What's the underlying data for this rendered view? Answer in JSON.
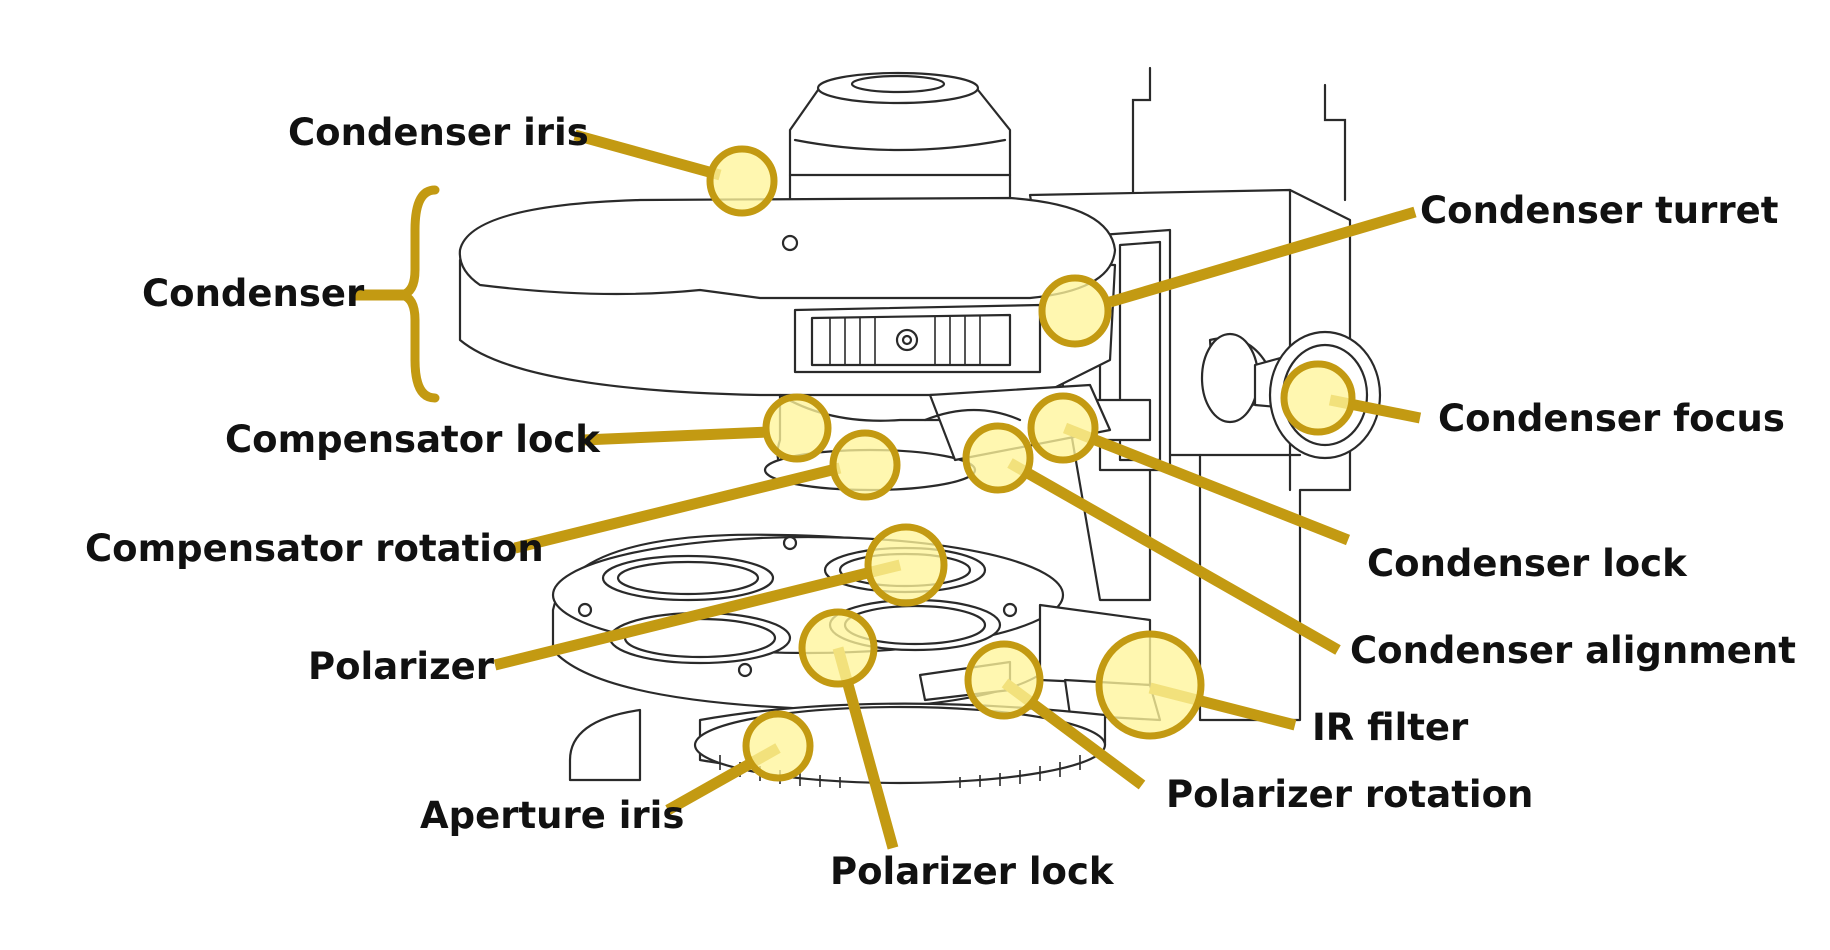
{
  "colors": {
    "accent": "#C39A12",
    "highlight_fill": "#FFF59A",
    "line_art": "#2a2a2a",
    "label_text": "#111111",
    "background": "#ffffff"
  },
  "labels": {
    "condenser_iris": "Condenser iris",
    "condenser": "Condenser",
    "compensator_lock": "Compensator lock",
    "compensator_rotation": "Compensator rotation",
    "polarizer": "Polarizer",
    "aperture_iris": "Aperture iris",
    "polarizer_lock": "Polarizer lock",
    "condenser_turret": "Condenser turret",
    "condenser_focus": "Condenser focus",
    "condenser_lock": "Condenser lock",
    "condenser_alignment": "Condenser alignment",
    "ir_filter": "IR filter",
    "polarizer_rotation": "Polarizer rotation"
  }
}
